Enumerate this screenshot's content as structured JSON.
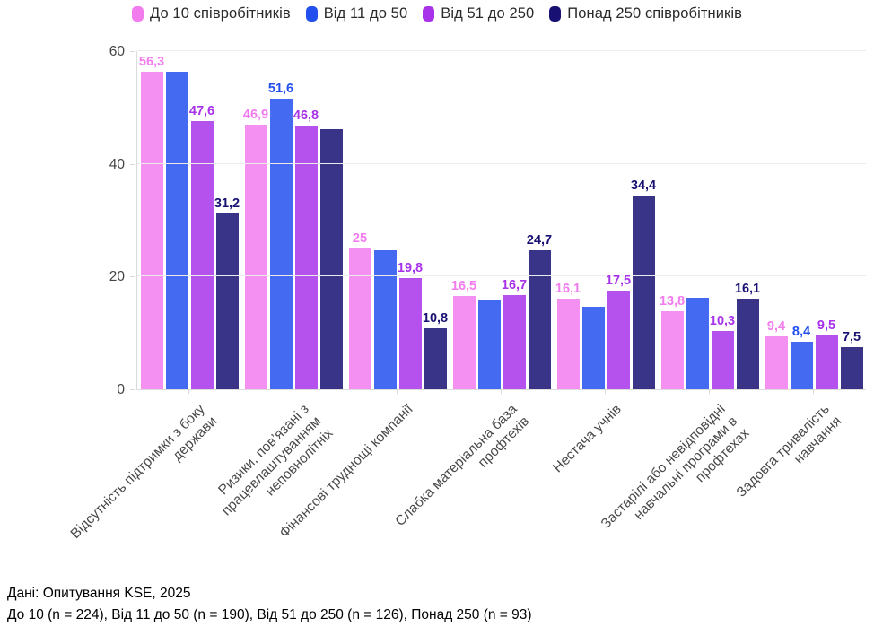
{
  "legend": {
    "items": [
      {
        "label": "До 10 співробітників",
        "color": "#f27cee"
      },
      {
        "label": "Від 11 до 50",
        "color": "#2250ee"
      },
      {
        "label": "Від 51 до 250",
        "color": "#a832ea"
      },
      {
        "label": "Понад 250 співробітників",
        "color": "#181173"
      }
    ]
  },
  "chart_data": {
    "type": "bar",
    "title": "",
    "xlabel": "",
    "ylabel": "",
    "ylim": [
      0,
      60
    ],
    "yticks": [
      0,
      20,
      40,
      60
    ],
    "grid": true,
    "legend_position": "top-center",
    "categories": [
      [
        "Відсутність підтримки з боку",
        "держави"
      ],
      [
        "Ризики, пов’язані з",
        "працевлаштуванням",
        "неповнолітніх"
      ],
      [
        "Фінансові труднощі компанії"
      ],
      [
        "Слабка матеріальна база",
        "профтехів"
      ],
      [
        "Нестача учнів"
      ],
      [
        "Застарілі або невідповідні",
        "навчальні програми в",
        "профтехах"
      ],
      [
        "Задовга тривалість",
        "навчання"
      ]
    ],
    "series": [
      {
        "name": "До 10 співробітників",
        "color": "#f27cee",
        "values": [
          56.3,
          46.9,
          25,
          16.5,
          16.1,
          13.8,
          9.4
        ],
        "labels": [
          "56,3",
          "46,9",
          "25",
          "16,5",
          "16,1",
          "13,8",
          "9,4"
        ]
      },
      {
        "name": "Від 11 до 50",
        "color": "#2250ee",
        "values": [
          56.4,
          51.6,
          24.7,
          15.7,
          14.6,
          16.3,
          8.4
        ],
        "labels": [
          "",
          "51,6",
          "",
          "",
          "",
          "",
          "8,4"
        ]
      },
      {
        "name": "Від 51 до 250",
        "color": "#a832ea",
        "values": [
          47.6,
          46.8,
          19.8,
          16.7,
          17.5,
          10.3,
          9.5
        ],
        "labels": [
          "47,6",
          "46,8",
          "19,8",
          "16,7",
          "17,5",
          "10,3",
          "9,5"
        ]
      },
      {
        "name": "Понад 250 співробітників",
        "color": "#181173",
        "values": [
          31.2,
          46.2,
          10.8,
          24.7,
          34.4,
          16.1,
          7.5
        ],
        "labels": [
          "31,2",
          "",
          "10,8",
          "24,7",
          "34,4",
          "16,1",
          "7,5"
        ]
      }
    ]
  },
  "footer": {
    "line1": "Дані: Опитування KSE, 2025",
    "line2": "До 10 (n = 224), Від 11 до 50 (n = 190), Від 51 до 250 (n = 126), Понад 250 (n = 93)"
  }
}
